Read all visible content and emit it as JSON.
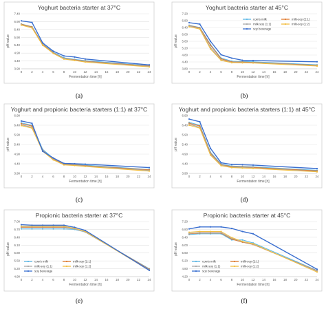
{
  "colors": {
    "cows_milk": "#5cb8e6",
    "milk_soy_2_1": "#e07a2e",
    "milk_soy_1_1": "#a9a9a9",
    "milk_soy_1_2": "#f2bd3e",
    "soy_beverage": "#3a6fd0"
  },
  "chart_data": [
    {
      "type": "line",
      "title": "Yoghurt bacteria starter at 37°C",
      "caption": "(a)",
      "xlabel": "Fermentation time [h]",
      "ylabel": "pH value",
      "x": [
        0,
        2,
        4,
        6,
        8,
        10,
        12,
        24
      ],
      "xticks": [
        "0",
        "2",
        "4",
        "6",
        "8",
        "10",
        "12",
        "14",
        "16",
        "18",
        "20",
        "22",
        "24"
      ],
      "ylim": [
        3.9,
        7.4
      ],
      "yticks": [
        "3.90",
        "4.40",
        "4.90",
        "5.40",
        "5.90",
        "6.40",
        "6.90",
        "7.40"
      ],
      "grid": true,
      "legend": "none",
      "series": [
        {
          "name": "cow's milk",
          "color_key": "cows_milk",
          "values": [
            6.75,
            6.58,
            5.48,
            4.95,
            4.6,
            4.5,
            4.42,
            4.1
          ]
        },
        {
          "name": "milk-soy (2:1)",
          "color_key": "milk_soy_2_1",
          "values": [
            6.73,
            6.56,
            5.45,
            4.92,
            4.56,
            4.47,
            4.38,
            4.08
          ]
        },
        {
          "name": "milk-soy (1:1)",
          "color_key": "milk_soy_1_1",
          "values": [
            6.7,
            6.53,
            5.42,
            4.9,
            4.55,
            4.45,
            4.35,
            4.05
          ]
        },
        {
          "name": "milk-soy (1:2)",
          "color_key": "milk_soy_1_2",
          "values": [
            6.68,
            6.5,
            5.4,
            4.88,
            4.52,
            4.43,
            4.33,
            4.02
          ]
        },
        {
          "name": "soy beverage",
          "color_key": "soy_beverage",
          "values": [
            6.95,
            6.85,
            5.55,
            5.02,
            4.72,
            4.65,
            4.52,
            4.15
          ]
        }
      ]
    },
    {
      "type": "line",
      "title": "Yoghurt bacteria starter at 45°C",
      "caption": "(b)",
      "xlabel": "Fermentation time [h]",
      "ylabel": "pH value",
      "x": [
        0,
        2,
        4,
        6,
        8,
        10,
        12,
        24
      ],
      "xticks": [
        "0",
        "2",
        "4",
        "6",
        "8",
        "10",
        "12",
        "14",
        "16",
        "18",
        "20",
        "22",
        "24"
      ],
      "ylim": [
        3.8,
        7.4
      ],
      "yticks": [
        "3.80",
        "4.40",
        "4.80",
        "5.20",
        "5.60",
        "6.00",
        "6.40",
        "6.80",
        "7.20"
      ],
      "grid": true,
      "legend": "top-right",
      "series": [
        {
          "name": "cow's milk",
          "color_key": "cows_milk",
          "values": [
            6.65,
            6.5,
            5.4,
            4.5,
            4.3,
            4.28,
            4.26,
            4.06
          ]
        },
        {
          "name": "milk-soy (2:1)",
          "color_key": "milk_soy_2_1",
          "values": [
            6.62,
            6.48,
            5.35,
            4.45,
            4.25,
            4.24,
            4.22,
            4.03
          ]
        },
        {
          "name": "milk-soy (1:1)",
          "color_key": "milk_soy_1_1",
          "values": [
            6.6,
            6.45,
            5.2,
            4.38,
            4.22,
            4.21,
            4.2,
            4.0
          ]
        },
        {
          "name": "milk-soy (1:2)",
          "color_key": "milk_soy_1_2",
          "values": [
            6.55,
            6.4,
            5.1,
            4.35,
            4.2,
            4.19,
            4.18,
            3.98
          ]
        },
        {
          "name": "soy beverage",
          "color_key": "soy_beverage",
          "values": [
            6.82,
            6.72,
            5.6,
            4.72,
            4.5,
            4.36,
            4.34,
            4.26
          ]
        }
      ]
    },
    {
      "type": "line",
      "title": "Yoghurt and propionic bacteria starters (1:1) at 37°C",
      "caption": "(c)",
      "xlabel": "Fermentation time [h]",
      "ylabel": "pH value",
      "x": [
        0,
        2,
        4,
        6,
        8,
        10,
        12,
        24
      ],
      "xticks": [
        "0",
        "2",
        "4",
        "6",
        "8",
        "10",
        "12",
        "14",
        "16",
        "18",
        "20",
        "22",
        "24"
      ],
      "ylim": [
        3.9,
        6.9
      ],
      "yticks": [
        "3.90",
        "4.40",
        "4.90",
        "5.40",
        "5.90",
        "6.40",
        "6.90"
      ],
      "grid": true,
      "legend": "none",
      "series": [
        {
          "name": "cow's milk",
          "color_key": "cows_milk",
          "values": [
            6.52,
            6.4,
            5.15,
            4.68,
            4.4,
            4.37,
            4.33,
            4.1
          ]
        },
        {
          "name": "milk-soy (2:1)",
          "color_key": "milk_soy_2_1",
          "values": [
            6.48,
            6.36,
            5.1,
            4.64,
            4.38,
            4.35,
            4.3,
            4.08
          ]
        },
        {
          "name": "milk-soy (1:1)",
          "color_key": "milk_soy_1_1",
          "values": [
            6.42,
            6.3,
            5.08,
            4.62,
            4.36,
            4.33,
            4.28,
            4.05
          ]
        },
        {
          "name": "milk-soy (1:2)",
          "color_key": "milk_soy_1_2",
          "values": [
            6.38,
            6.25,
            5.05,
            4.6,
            4.34,
            4.31,
            4.26,
            4.02
          ]
        },
        {
          "name": "soy beverage",
          "color_key": "soy_beverage",
          "values": [
            6.62,
            6.5,
            5.05,
            4.7,
            4.42,
            4.4,
            4.38,
            4.2
          ]
        }
      ]
    },
    {
      "type": "line",
      "title": "Yoghurt and propionic bacteria starters (1:1) at 45°C",
      "caption": "(d)",
      "xlabel": "Fermentation time [h]",
      "ylabel": "pH value",
      "x": [
        0,
        2,
        4,
        6,
        8,
        10,
        12,
        24
      ],
      "xticks": [
        "0",
        "2",
        "4",
        "6",
        "8",
        "10",
        "12",
        "14",
        "16",
        "18",
        "20",
        "22",
        "24"
      ],
      "ylim": [
        3.9,
        6.9
      ],
      "yticks": [
        "3.90",
        "4.40",
        "4.90",
        "5.40",
        "5.90",
        "6.40",
        "6.90"
      ],
      "grid": true,
      "legend": "none",
      "series": [
        {
          "name": "cow's milk",
          "color_key": "cows_milk",
          "values": [
            6.55,
            6.4,
            5.0,
            4.38,
            4.28,
            4.26,
            4.24,
            4.06
          ]
        },
        {
          "name": "milk-soy (2:1)",
          "color_key": "milk_soy_2_1",
          "values": [
            6.5,
            6.36,
            4.95,
            4.35,
            4.25,
            4.23,
            4.21,
            4.03
          ]
        },
        {
          "name": "milk-soy (1:1)",
          "color_key": "milk_soy_1_1",
          "values": [
            6.45,
            6.3,
            4.9,
            4.33,
            4.22,
            4.2,
            4.18,
            4.0
          ]
        },
        {
          "name": "milk-soy (1:2)",
          "color_key": "milk_soy_1_2",
          "values": [
            6.4,
            6.25,
            4.85,
            4.3,
            4.2,
            4.18,
            4.16,
            3.98
          ]
        },
        {
          "name": "soy beverage",
          "color_key": "soy_beverage",
          "values": [
            6.72,
            6.58,
            5.2,
            4.45,
            4.36,
            4.35,
            4.33,
            4.15
          ]
        }
      ]
    },
    {
      "type": "line",
      "title": "Propionic bacteria starter at 37°C",
      "caption": "(e)",
      "xlabel": "Fermentation time [h]",
      "ylabel": "pH value",
      "x": [
        0,
        2,
        4,
        6,
        8,
        10,
        12,
        24
      ],
      "xticks": [
        "0",
        "2",
        "4",
        "6",
        "8",
        "10",
        "12",
        "14",
        "16",
        "18",
        "20",
        "22",
        "24"
      ],
      "ylim": [
        4.9,
        7.0
      ],
      "yticks": [
        "4.90",
        "5.20",
        "5.50",
        "5.80",
        "6.10",
        "6.40",
        "6.70",
        "7.00"
      ],
      "grid": true,
      "legend": "bottom-left",
      "series": [
        {
          "name": "cow's milk",
          "color_key": "cows_milk",
          "values": [
            6.72,
            6.72,
            6.72,
            6.72,
            6.72,
            6.7,
            6.6,
            5.2
          ]
        },
        {
          "name": "milk-soy (2:1)",
          "color_key": "milk_soy_2_1",
          "values": [
            6.78,
            6.78,
            6.78,
            6.78,
            6.78,
            6.72,
            6.62,
            5.18
          ]
        },
        {
          "name": "milk-soy (1:1)",
          "color_key": "milk_soy_1_1",
          "values": [
            6.8,
            6.8,
            6.8,
            6.8,
            6.8,
            6.72,
            6.6,
            5.16
          ]
        },
        {
          "name": "milk-soy (1:2)",
          "color_key": "milk_soy_1_2",
          "values": [
            6.82,
            6.82,
            6.82,
            6.82,
            6.82,
            6.74,
            6.62,
            5.14
          ]
        },
        {
          "name": "soy beverage",
          "color_key": "soy_beverage",
          "values": [
            6.88,
            6.86,
            6.86,
            6.86,
            6.86,
            6.78,
            6.66,
            5.14
          ]
        }
      ]
    },
    {
      "type": "line",
      "title": "Propionic bacteria starter at 45°C",
      "caption": "(f)",
      "xlabel": "Fermentation time [h]",
      "ylabel": "pH value",
      "x": [
        0,
        2,
        4,
        6,
        8,
        10,
        12,
        24
      ],
      "xticks": [
        "0",
        "2",
        "4",
        "6",
        "8",
        "10",
        "12",
        "14",
        "16",
        "18",
        "20",
        "22",
        "24"
      ],
      "ylim": [
        3.8,
        7.4
      ],
      "yticks": [
        "4.20",
        "4.80",
        "5.20",
        "5.60",
        "6.00",
        "6.40",
        "6.80",
        "7.20"
      ],
      "grid": true,
      "legend": "bottom-left",
      "series": [
        {
          "name": "cow's milk",
          "color_key": "cows_milk",
          "values": [
            6.55,
            6.6,
            6.6,
            6.6,
            6.2,
            6.2,
            6.0,
            4.2
          ]
        },
        {
          "name": "milk-soy (2:1)",
          "color_key": "milk_soy_2_1",
          "values": [
            6.6,
            6.65,
            6.65,
            6.65,
            6.25,
            6.05,
            5.9,
            4.18
          ]
        },
        {
          "name": "milk-soy (1:1)",
          "color_key": "milk_soy_1_1",
          "values": [
            6.62,
            6.68,
            6.68,
            6.68,
            6.3,
            6.08,
            5.92,
            4.16
          ]
        },
        {
          "name": "milk-soy (1:2)",
          "color_key": "milk_soy_1_2",
          "values": [
            6.7,
            6.75,
            6.75,
            6.75,
            6.35,
            6.1,
            5.95,
            4.1
          ]
        },
        {
          "name": "soy beverage",
          "color_key": "soy_beverage",
          "values": [
            6.92,
            7.05,
            7.05,
            7.05,
            6.95,
            6.75,
            6.6,
            4.28
          ]
        }
      ]
    }
  ]
}
